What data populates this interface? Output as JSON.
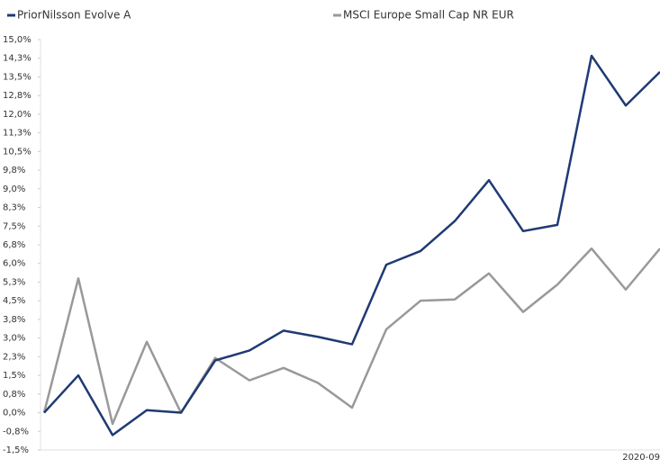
{
  "chart_data": {
    "type": "line",
    "categories": [
      null,
      null,
      null,
      null,
      null,
      null,
      null,
      null,
      null,
      null,
      null,
      null,
      null,
      null,
      null,
      null,
      null,
      null,
      "2020-09"
    ],
    "series": [
      {
        "name": "PriorNilsson Evolve A",
        "color": "#1f3a73",
        "values": [
          0,
          1.5,
          -0.9,
          0.1,
          0.0,
          2.1,
          2.5,
          3.3,
          3.05,
          2.75,
          5.95,
          6.5,
          7.7,
          9.35,
          7.3,
          7.55,
          14.35,
          12.35,
          13.7
        ]
      },
      {
        "name": "MSCI Europe Small Cap NR EUR",
        "color": "#999999",
        "values": [
          0,
          5.4,
          -0.45,
          2.85,
          0.0,
          2.2,
          1.3,
          1.8,
          1.2,
          0.2,
          3.35,
          4.5,
          4.55,
          5.6,
          4.05,
          5.15,
          6.6,
          4.95,
          6.6
        ]
      }
    ],
    "ylim": [
      -1.5,
      15
    ],
    "yticks": [
      {
        "value": 15,
        "label": "15,0%"
      },
      {
        "value": 14.25,
        "label": "14,3%"
      },
      {
        "value": 13.5,
        "label": "13,5%"
      },
      {
        "value": 12.75,
        "label": "12,8%"
      },
      {
        "value": 12,
        "label": "12,0%"
      },
      {
        "value": 11.25,
        "label": "11,3%"
      },
      {
        "value": 10.5,
        "label": "10,5%"
      },
      {
        "value": 9.75,
        "label": "9,8%"
      },
      {
        "value": 9,
        "label": "9,0%"
      },
      {
        "value": 8.25,
        "label": "8,3%"
      },
      {
        "value": 7.5,
        "label": "7,5%"
      },
      {
        "value": 6.75,
        "label": "6,8%"
      },
      {
        "value": 6,
        "label": "6,0%"
      },
      {
        "value": 5.25,
        "label": "5,3%"
      },
      {
        "value": 4.5,
        "label": "4,5%"
      },
      {
        "value": 3.75,
        "label": "3,8%"
      },
      {
        "value": 3,
        "label": "3,0%"
      },
      {
        "value": 2.25,
        "label": "2,3%"
      },
      {
        "value": 1.5,
        "label": "1,5%"
      },
      {
        "value": 0.75,
        "label": "0,8%"
      },
      {
        "value": 0,
        "label": "0,0%"
      },
      {
        "value": -0.75,
        "label": "-0,8%"
      },
      {
        "value": -1.5,
        "label": "-1,5%"
      }
    ]
  }
}
